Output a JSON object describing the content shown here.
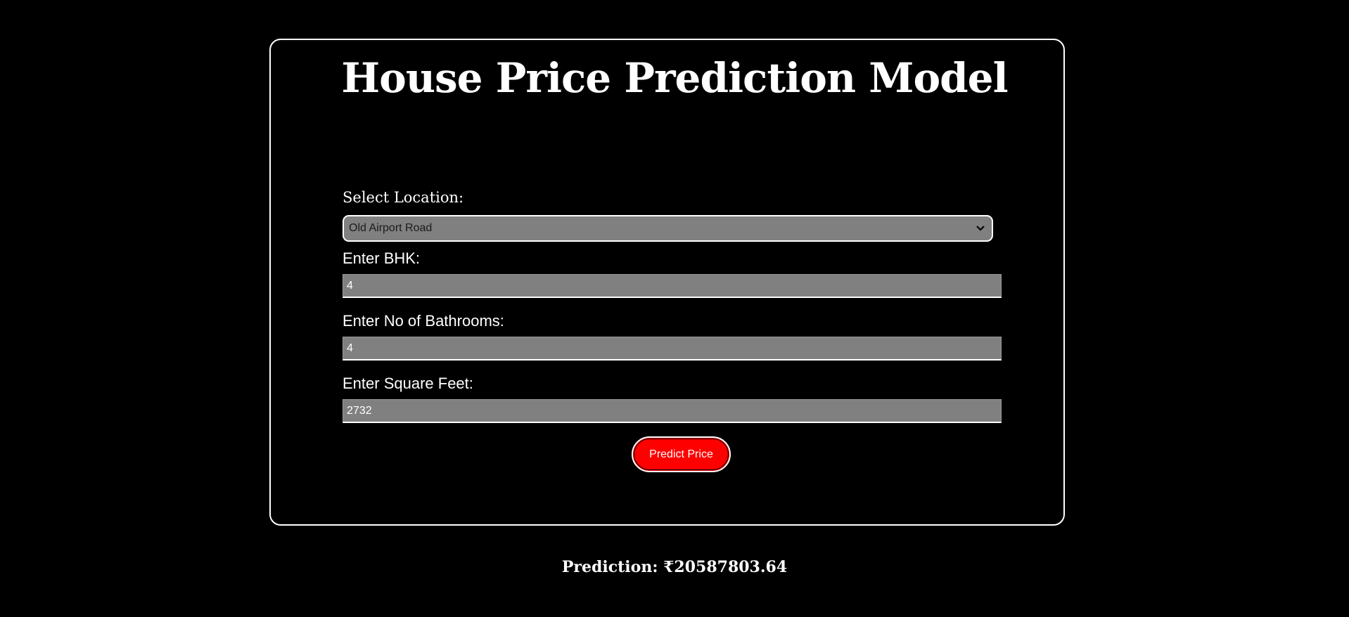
{
  "page": {
    "title": "House Price Prediction Model"
  },
  "form": {
    "location_label": "Select Location:",
    "location_value": "Old Airport Road",
    "bhk_label": "Enter BHK:",
    "bhk_value": "4",
    "bath_label": "Enter No of Bathrooms:",
    "bath_value": "4",
    "sqft_label": "Enter Square Feet:",
    "sqft_value": "2732",
    "submit_label": "Predict Price"
  },
  "result": {
    "text": "Prediction: ₹20587803.64"
  },
  "icons": {
    "dropdown": "chevron-down-icon"
  },
  "colors": {
    "background": "#000000",
    "text": "#ffffff",
    "input_bg": "#808080",
    "button_bg": "#ff0000"
  }
}
